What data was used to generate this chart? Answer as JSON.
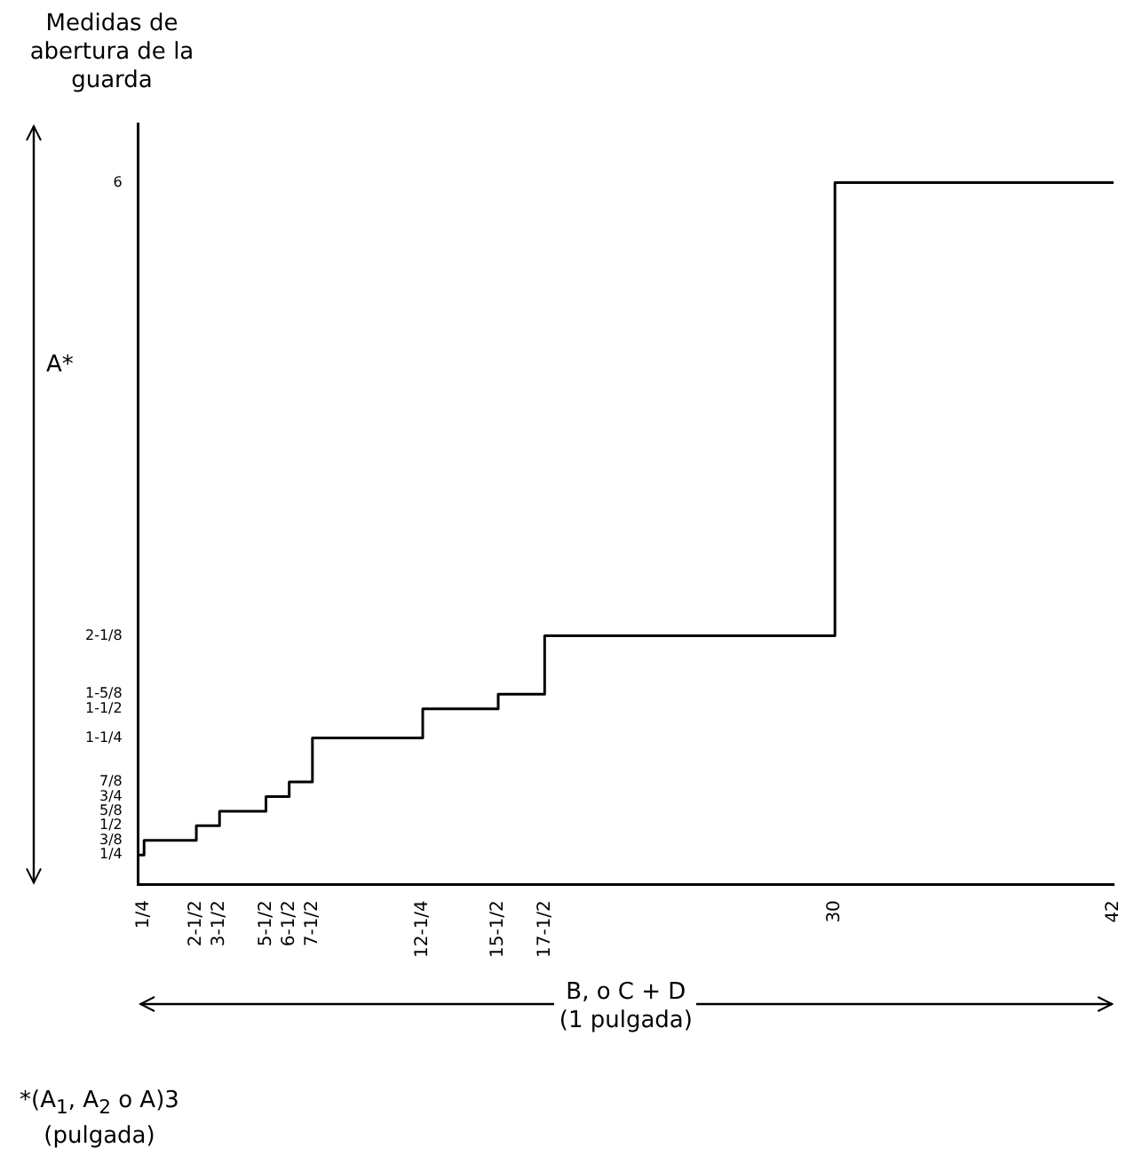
{
  "chart_data": {
    "type": "step",
    "ylabel": "Medidas de abertura de la guarda",
    "xlabel": "B, o C + D (1 pulgada)",
    "annotations": [
      "A*",
      "*(A$_{1}$, A$_{2}$ o A)3 (pulgada)"
    ],
    "x": [
      0,
      0.25,
      2.5,
      3.5,
      5.5,
      6.5,
      7.5,
      12.25,
      15.5,
      17.5,
      30,
      42
    ],
    "values": [
      0.25,
      0.375,
      0.5,
      0.625,
      0.75,
      0.875,
      1.25,
      1.5,
      1.625,
      2.125,
      6,
      6
    ],
    "color": "#000000",
    "marker": "none",
    "line_style": "solid",
    "grid": false,
    "xlim": [
      0,
      42
    ],
    "ylim": [
      0,
      6.5
    ],
    "xticks": [
      {
        "value": 0.25,
        "label": "1/4"
      },
      {
        "value": 2.5,
        "label": "2-1/2"
      },
      {
        "value": 3.5,
        "label": "3-1/2"
      },
      {
        "value": 5.5,
        "label": "5-1/2"
      },
      {
        "value": 6.5,
        "label": "6-1/2"
      },
      {
        "value": 7.5,
        "label": "7-1/2"
      },
      {
        "value": 12.25,
        "label": "12-1/4"
      },
      {
        "value": 15.5,
        "label": "15-1/2"
      },
      {
        "value": 17.5,
        "label": "17-1/2"
      },
      30,
      42
    ],
    "yticks": [
      {
        "value": 0.25,
        "label": "1/4"
      },
      {
        "value": 0.375,
        "label": "3/8"
      },
      {
        "value": 0.5,
        "label": "1/2"
      },
      {
        "value": 0.625,
        "label": "5/8"
      },
      {
        "value": 0.75,
        "label": "3/4"
      },
      {
        "value": 0.875,
        "label": "7/8"
      },
      {
        "value": 1.25,
        "label": "1-1/4"
      },
      {
        "value": 1.5,
        "label": "1-1/2"
      },
      {
        "value": 1.625,
        "label": "1-5/8"
      },
      {
        "value": 2.125,
        "label": "2-1/8"
      },
      6
    ]
  }
}
